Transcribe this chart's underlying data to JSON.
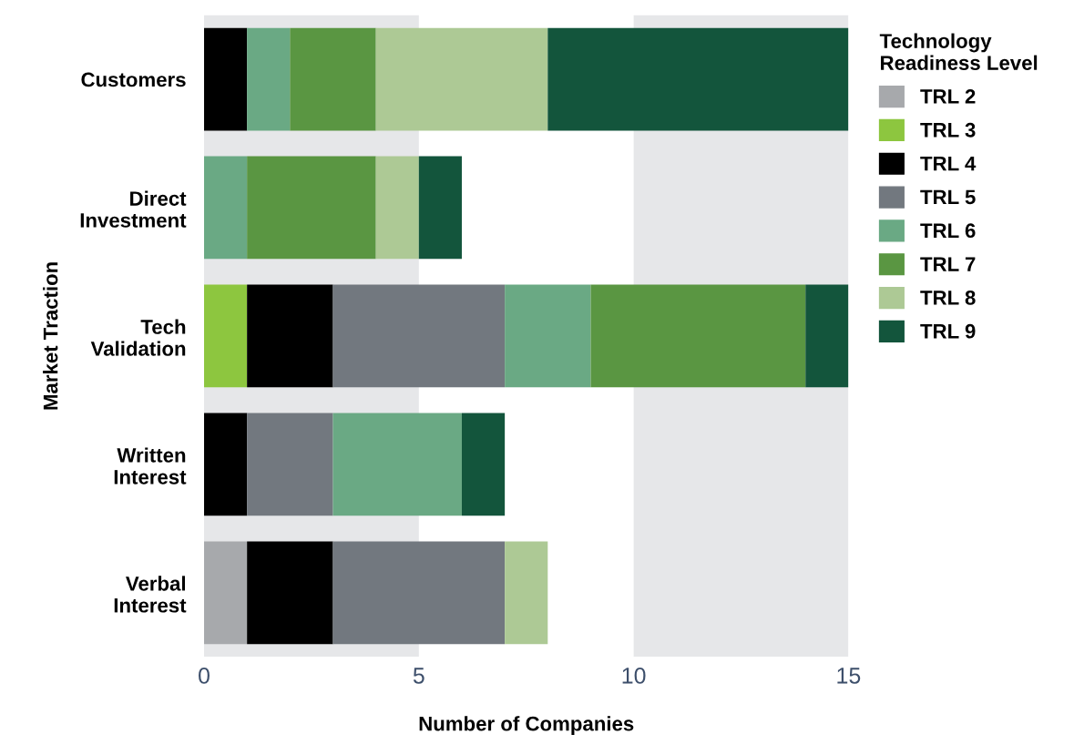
{
  "chart_data": {
    "type": "bar",
    "orientation": "horizontal",
    "stacked": true,
    "xlabel": "Number of Companies",
    "ylabel": "Market Traction",
    "legend_title": "Technology\nReadiness Level",
    "categories": [
      "Customers",
      "Direct\nInvestment",
      "Tech\nValidation",
      "Written\nInterest",
      "Verbal\nInterest"
    ],
    "series": [
      {
        "name": "TRL 2",
        "color": "#a7a9ac",
        "values": [
          null,
          null,
          null,
          null,
          1
        ]
      },
      {
        "name": "TRL 3",
        "color": "#8dc63f",
        "values": [
          null,
          null,
          1,
          null,
          null
        ]
      },
      {
        "name": "TRL 4",
        "color": "#000000",
        "values": [
          1,
          null,
          2,
          1,
          2
        ]
      },
      {
        "name": "TRL 5",
        "color": "#72787f",
        "values": [
          null,
          null,
          4,
          2,
          4
        ]
      },
      {
        "name": "TRL 6",
        "color": "#6aa984",
        "values": [
          1,
          1,
          2,
          3,
          null
        ]
      },
      {
        "name": "TRL 7",
        "color": "#5a9642",
        "values": [
          2,
          3,
          5,
          null,
          null
        ]
      },
      {
        "name": "TRL 8",
        "color": "#adc995",
        "values": [
          4,
          1,
          null,
          null,
          1
        ]
      },
      {
        "name": "TRL 9",
        "color": "#13553c",
        "values": [
          7,
          1,
          1,
          1,
          null
        ]
      }
    ],
    "xlim": [
      0,
      15
    ],
    "xticks": [
      0,
      5,
      10,
      15
    ],
    "bands": [
      {
        "axis": "x",
        "from": 0,
        "to": 5,
        "color": "#e6e7e9"
      },
      {
        "axis": "x",
        "from": 10,
        "to": 15,
        "color": "#e6e7e9"
      }
    ],
    "grid": false,
    "legend": "right"
  }
}
